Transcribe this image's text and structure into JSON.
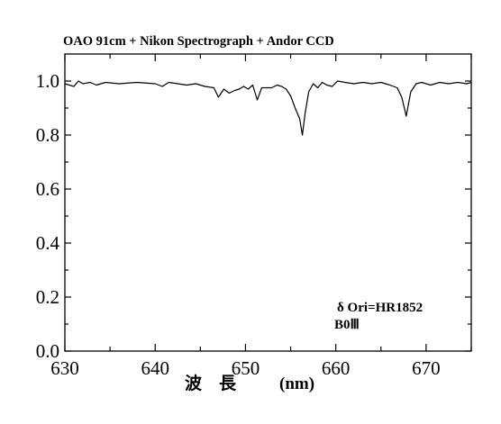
{
  "chart_data": {
    "type": "line",
    "title": "OAO 91cm + Nikon Spectrograph + Andor CCD",
    "xlabel": "波　長",
    "xunit": "(nm)",
    "ylabel": "",
    "xlim": [
      630,
      675
    ],
    "ylim": [
      0.0,
      1.1
    ],
    "x_ticks": [
      630,
      640,
      650,
      660,
      670
    ],
    "x_tick_labels": [
      "630",
      "640",
      "650",
      "660",
      "670"
    ],
    "y_ticks": [
      0.0,
      0.2,
      0.4,
      0.6,
      0.8,
      1.0
    ],
    "y_tick_labels": [
      "0.0",
      "0.2",
      "0.4",
      "0.6",
      "0.8",
      "1.0"
    ],
    "grid": false,
    "annotations": [
      "δ Ori=HR1852",
      "B0Ⅲ"
    ],
    "series": [
      {
        "x": [
          630.0,
          631.0,
          631.5,
          632.0,
          632.8,
          633.5,
          634.5,
          636.0,
          638.0,
          640.0,
          640.8,
          641.5,
          642.5,
          643.5,
          644.5,
          645.5,
          646.5,
          647.0,
          647.6,
          648.2,
          648.8,
          649.3,
          649.8,
          650.3,
          650.8,
          651.3,
          651.8,
          652.3,
          652.9,
          653.5,
          654.0,
          654.5,
          655.0,
          655.5,
          656.0,
          656.3,
          656.6,
          657.0,
          657.5,
          658.0,
          658.5,
          659.0,
          659.6,
          660.2,
          661.0,
          662.0,
          663.0,
          664.0,
          665.0,
          666.0,
          666.8,
          667.3,
          667.8,
          668.3,
          668.9,
          669.5,
          670.5,
          671.5,
          672.5,
          673.5,
          674.5,
          675.0
        ],
        "y": [
          0.99,
          0.98,
          1.0,
          0.99,
          0.995,
          0.985,
          0.995,
          0.99,
          0.995,
          0.99,
          0.98,
          0.995,
          0.99,
          0.985,
          0.99,
          0.98,
          0.975,
          0.94,
          0.97,
          0.955,
          0.965,
          0.97,
          0.98,
          0.97,
          0.985,
          0.93,
          0.975,
          0.975,
          0.975,
          0.985,
          0.98,
          0.97,
          0.945,
          0.9,
          0.86,
          0.8,
          0.88,
          0.96,
          0.99,
          0.975,
          0.995,
          0.985,
          0.98,
          1.0,
          0.995,
          0.99,
          0.995,
          0.99,
          0.995,
          0.985,
          0.975,
          0.94,
          0.87,
          0.96,
          0.99,
          0.995,
          0.985,
          0.995,
          0.99,
          0.995,
          0.99,
          0.995
        ]
      }
    ]
  }
}
